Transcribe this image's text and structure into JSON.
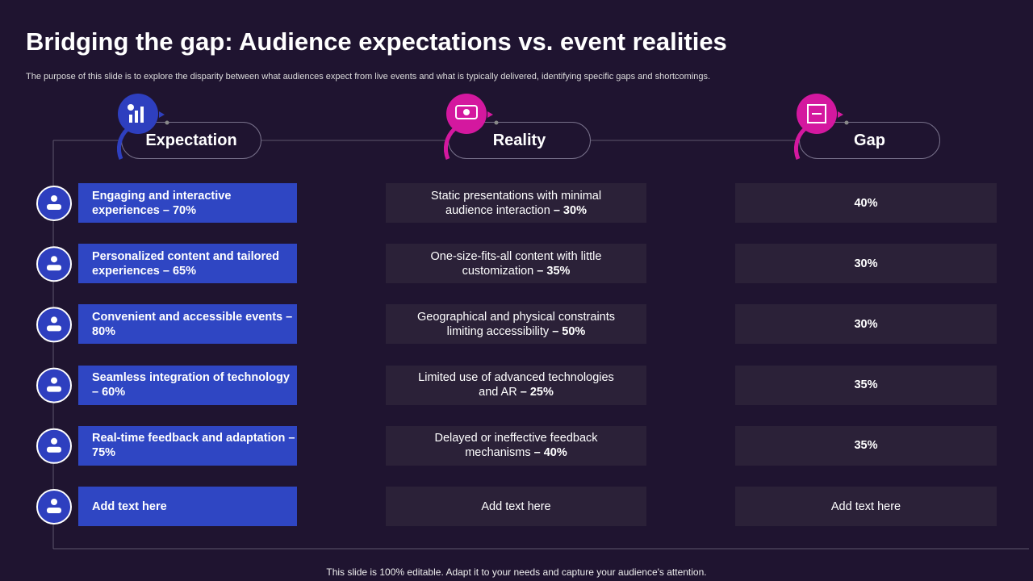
{
  "header": {
    "title": "Bridging the gap: Audience expectations vs. event realities",
    "subtitle": "The purpose of this slide is to explore the disparity between what audiences expect from live events and what is typically delivered, identifying specific gaps and shortcomings."
  },
  "columns": [
    "Expectation",
    "Reality",
    "Gap"
  ],
  "rows": [
    {
      "expectation": "Engaging and interactive experiences – 70%",
      "reality": {
        "text": "Static presentations with minimal audience interaction",
        "emphasis": "– 30%"
      },
      "gap": "40%"
    },
    {
      "expectation": "Personalized content and tailored experiences – 65%",
      "reality": {
        "text": "One-size-fits-all content with little customization",
        "emphasis": "– 35%"
      },
      "gap": "30%"
    },
    {
      "expectation": "Convenient and accessible events – 80%",
      "reality": {
        "text": "Geographical and physical constraints limiting accessibility",
        "emphasis": "– 50%"
      },
      "gap": "30%"
    },
    {
      "expectation": "Seamless integration of technology – 60%",
      "reality": {
        "text": "Limited use of advanced technologies and AR",
        "emphasis": "– 25%"
      },
      "gap": "35%"
    },
    {
      "expectation": "Real-time feedback and adaptation – 75%",
      "reality": {
        "text": "Delayed or ineffective feedback mechanisms",
        "emphasis": "– 40%"
      },
      "gap": "35%"
    },
    {
      "expectation": "Add text here",
      "reality": {
        "text": "Add text here"
      },
      "gap": "Add text here"
    }
  ],
  "footer": "This slide is 100% editable. Adapt it to your needs and capture your audience's attention."
}
